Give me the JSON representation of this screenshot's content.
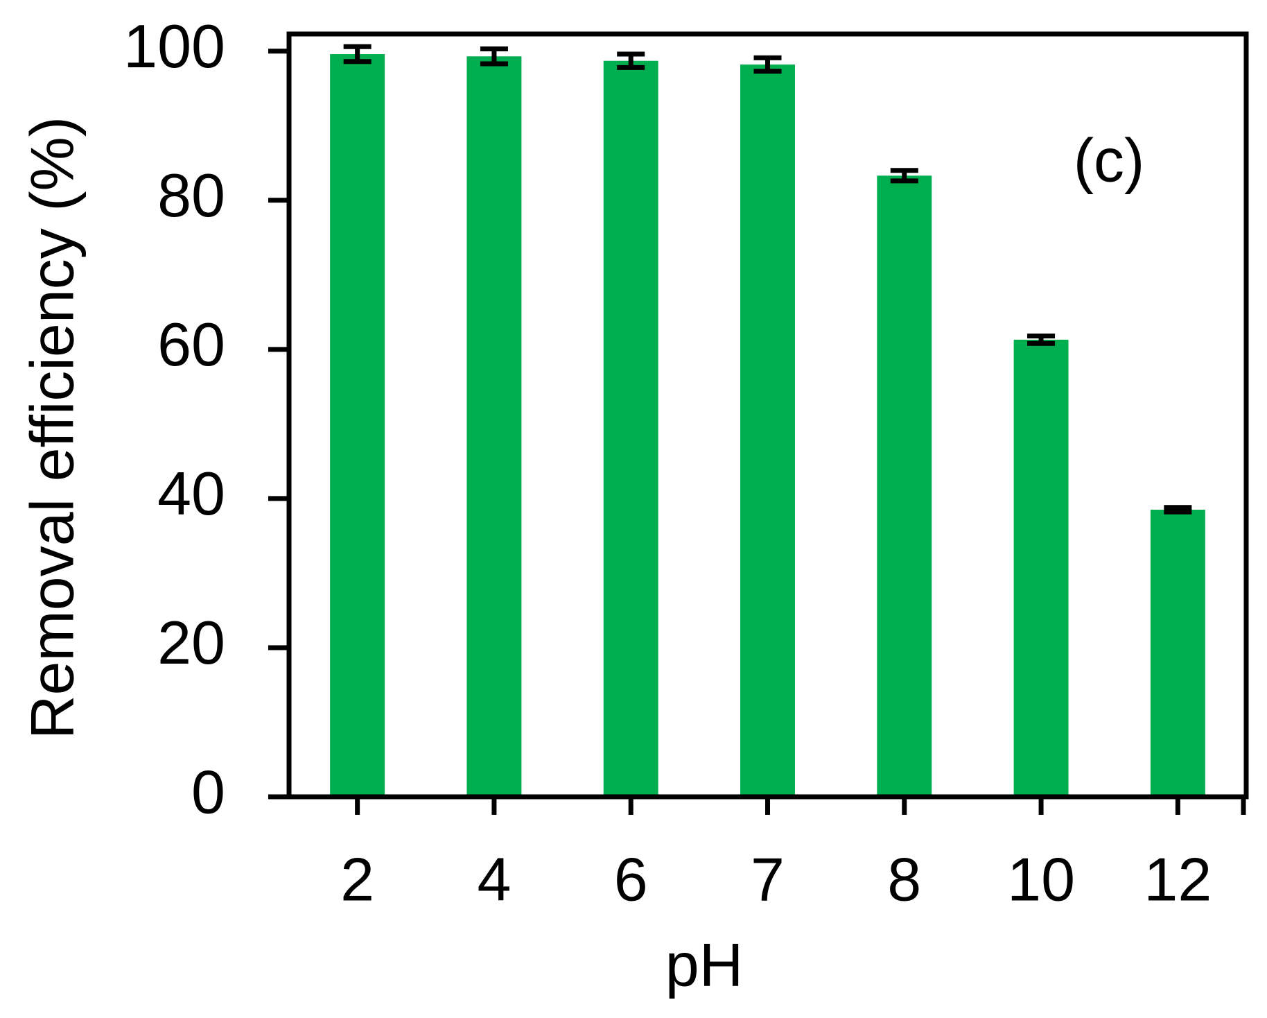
{
  "chart_data": {
    "type": "bar",
    "x_label": "pH",
    "y_label": "Removal efficiency (%)",
    "annotation": "(c)",
    "categories": [
      "2",
      "4",
      "6",
      "7",
      "8",
      "10",
      "12"
    ],
    "values": [
      99.6,
      99.3,
      98.7,
      98.2,
      83.3,
      61.3,
      38.5
    ],
    "errors": [
      1.0,
      1.0,
      0.9,
      0.9,
      0.7,
      0.5,
      0.3
    ],
    "color": "#00ad4f",
    "ylim": [
      0,
      102.3
    ],
    "yticks": [
      0,
      20,
      40,
      60,
      80,
      100
    ],
    "grid": false
  }
}
